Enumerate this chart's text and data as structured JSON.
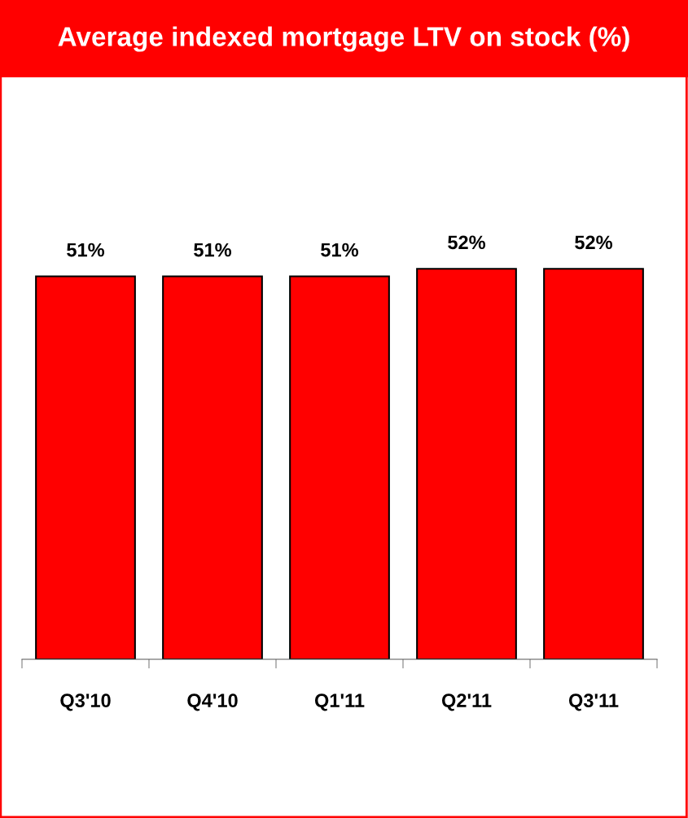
{
  "chart_data": {
    "type": "bar",
    "title": "Average indexed mortgage LTV on stock (%)",
    "categories": [
      "Q3'10",
      "Q4'10",
      "Q1'11",
      "Q2'11",
      "Q3'11"
    ],
    "values": [
      51,
      51,
      51,
      52,
      52
    ],
    "value_labels": [
      "51%",
      "51%",
      "51%",
      "52%",
      "52%"
    ],
    "color": "#ff0000"
  }
}
